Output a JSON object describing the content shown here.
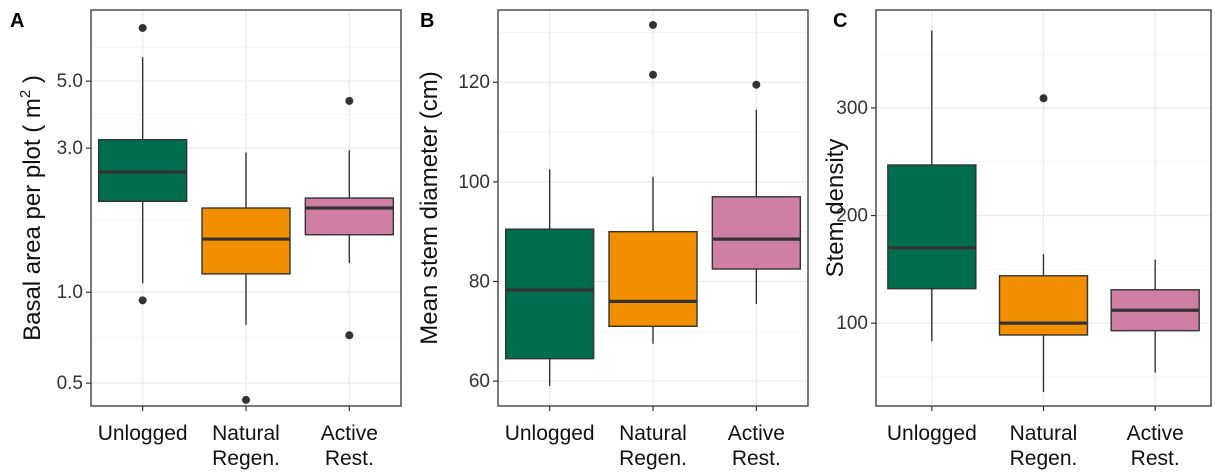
{
  "chart_data": [
    {
      "panel": "A",
      "type": "box",
      "ylabel_main": "Basal area per plot ( m",
      "ylabel_sup": "2",
      "ylabel_end": " )",
      "yscale": "log",
      "ylim": [
        0.42,
        8.6
      ],
      "yticks": [
        0.5,
        1.0,
        3.0,
        5.0
      ],
      "yticklabels": [
        "0.5",
        "1.0",
        "3.0",
        "5.0"
      ],
      "categories": [
        "Unlogged",
        "Natural Regen.",
        "Active Rest."
      ],
      "category_lines": [
        [
          "Unlogged"
        ],
        [
          "Natural",
          "Regen."
        ],
        [
          "Active",
          "Rest."
        ]
      ],
      "boxes": [
        {
          "whisker_low": 1.07,
          "q1": 2.0,
          "median": 2.5,
          "q3": 3.2,
          "whisker_high": 6.0,
          "outliers": [
            7.5,
            0.94
          ],
          "color": "#006d4f"
        },
        {
          "whisker_low": 0.78,
          "q1": 1.15,
          "median": 1.5,
          "q3": 1.9,
          "whisker_high": 2.9,
          "outliers": [
            0.44
          ],
          "color": "#f18f00"
        },
        {
          "whisker_low": 1.25,
          "q1": 1.55,
          "median": 1.9,
          "q3": 2.05,
          "whisker_high": 2.95,
          "outliers": [
            4.3,
            0.72
          ],
          "color": "#cf7fa4"
        }
      ]
    },
    {
      "panel": "B",
      "type": "box",
      "ylabel_main": "Mean stem diameter (cm)",
      "ylabel_sup": "",
      "ylabel_end": "",
      "yscale": "linear",
      "ylim": [
        55,
        134.5
      ],
      "yticks": [
        60,
        80,
        100,
        120
      ],
      "yticklabels": [
        "60",
        "80",
        "100",
        "120"
      ],
      "categories": [
        "Unlogged",
        "Natural Regen.",
        "Active Rest."
      ],
      "category_lines": [
        [
          "Unlogged"
        ],
        [
          "Natural",
          "Regen."
        ],
        [
          "Active",
          "Rest."
        ]
      ],
      "boxes": [
        {
          "whisker_low": 59,
          "q1": 64.5,
          "median": 78.3,
          "q3": 90.5,
          "whisker_high": 102.5,
          "outliers": [],
          "color": "#006d4f"
        },
        {
          "whisker_low": 67.5,
          "q1": 71,
          "median": 76,
          "q3": 90,
          "whisker_high": 101,
          "outliers": [
            131.5,
            121.5
          ],
          "color": "#f18f00"
        },
        {
          "whisker_low": 75.5,
          "q1": 82.5,
          "median": 88.5,
          "q3": 97,
          "whisker_high": 114.5,
          "outliers": [
            119.5
          ],
          "color": "#cf7fa4"
        }
      ]
    },
    {
      "panel": "C",
      "type": "box",
      "ylabel_main": "Stem density",
      "ylabel_sup": "",
      "ylabel_end": "",
      "yscale": "linear",
      "ylim": [
        23,
        391
      ],
      "yticks": [
        100,
        200,
        300
      ],
      "yticklabels": [
        "100",
        "200",
        "300"
      ],
      "categories": [
        "Unlogged",
        "Natural Regen.",
        "Active Rest."
      ],
      "category_lines": [
        [
          "Unlogged"
        ],
        [
          "Natural",
          "Regen."
        ],
        [
          "Active",
          "Rest."
        ]
      ],
      "boxes": [
        {
          "whisker_low": 83,
          "q1": 132,
          "median": 170,
          "q3": 247,
          "whisker_high": 372,
          "outliers": [],
          "color": "#006d4f"
        },
        {
          "whisker_low": 36,
          "q1": 89,
          "median": 100,
          "q3": 144,
          "whisker_high": 164,
          "outliers": [
            309
          ],
          "color": "#f18f00"
        },
        {
          "whisker_low": 54,
          "q1": 93,
          "median": 112,
          "q3": 131,
          "whisker_high": 159,
          "outliers": [],
          "color": "#cf7fa4"
        }
      ]
    }
  ]
}
